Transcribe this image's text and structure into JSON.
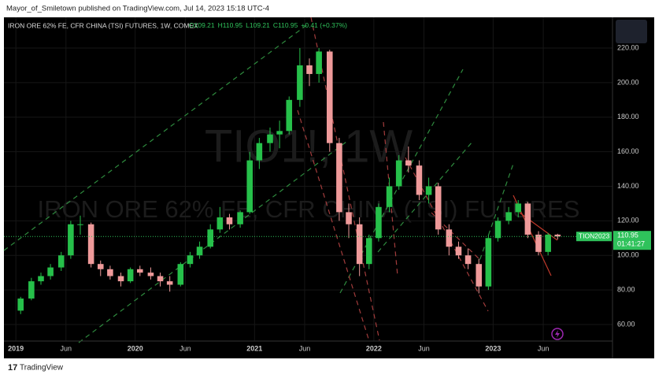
{
  "header": {
    "publisher": "Mayor_of_Smiletown published on TradingView.com, Jul 14, 2023 15:18 UTC-4"
  },
  "footer": {
    "brand": "TradingView"
  },
  "chart_data": {
    "type": "candlestick",
    "title": "IRON ORE 62% FE, CFR CHINA (TSI) FUTURES, 1W, COMEX",
    "legend_values": [
      "O109.21",
      "H110.95",
      "L109.21",
      "C110.95",
      "+0.41 (+0.37%)"
    ],
    "watermark": [
      "TIO1!, 1W",
      "IRON ORE 62% FE, CFR CHINA (TSI) FUTURES"
    ],
    "last_price": {
      "value": 110.95,
      "symbol": "TION2023",
      "label": "110.95",
      "countdown": "01:41:27"
    },
    "up_color": "#26c04a",
    "down_color": "#ef9a9a",
    "grid": true,
    "x": [
      2019.04,
      2019.13,
      2019.21,
      2019.29,
      2019.38,
      2019.46,
      2019.54,
      2019.63,
      2019.71,
      2019.79,
      2019.88,
      2019.96,
      2020.04,
      2020.13,
      2020.21,
      2020.29,
      2020.38,
      2020.46,
      2020.54,
      2020.63,
      2020.71,
      2020.79,
      2020.88,
      2020.96,
      2021.04,
      2021.13,
      2021.21,
      2021.29,
      2021.38,
      2021.46,
      2021.54,
      2021.63,
      2021.71,
      2021.79,
      2021.88,
      2021.96,
      2022.04,
      2022.13,
      2022.21,
      2022.29,
      2022.38,
      2022.46,
      2022.54,
      2022.63,
      2022.71,
      2022.79,
      2022.88,
      2022.96,
      2023.04,
      2023.13,
      2023.21,
      2023.29,
      2023.38,
      2023.46,
      2023.54
    ],
    "open": [
      68,
      75,
      85,
      88,
      93,
      100,
      118,
      118,
      95,
      92,
      88,
      85,
      92,
      90,
      88,
      85,
      83,
      95,
      100,
      105,
      115,
      122,
      118,
      125,
      155,
      165,
      170,
      172,
      190,
      210,
      205,
      218,
      165,
      125,
      118,
      95,
      110,
      128,
      140,
      155,
      152,
      135,
      140,
      115,
      105,
      100,
      95,
      82,
      110,
      120,
      125,
      130,
      112,
      102,
      112
    ],
    "high": [
      76,
      87,
      90,
      95,
      102,
      120,
      123,
      119,
      97,
      94,
      90,
      93,
      94,
      93,
      90,
      88,
      96,
      102,
      108,
      118,
      128,
      124,
      126,
      160,
      168,
      174,
      178,
      192,
      220,
      214,
      220,
      219,
      168,
      130,
      122,
      112,
      130,
      145,
      158,
      163,
      155,
      145,
      142,
      118,
      108,
      104,
      98,
      112,
      122,
      128,
      132,
      131,
      114,
      113,
      112.5
    ],
    "low": [
      66,
      74,
      83,
      86,
      91,
      98,
      112,
      93,
      88,
      86,
      82,
      84,
      88,
      86,
      82,
      79,
      82,
      93,
      98,
      104,
      113,
      115,
      116,
      124,
      150,
      160,
      162,
      170,
      186,
      198,
      200,
      160,
      120,
      110,
      88,
      92,
      108,
      125,
      138,
      148,
      132,
      130,
      112,
      100,
      98,
      92,
      78,
      80,
      108,
      118,
      122,
      110,
      100,
      100,
      109.21
    ],
    "close": [
      75,
      85,
      88,
      93,
      100,
      118,
      118,
      95,
      92,
      88,
      85,
      92,
      90,
      88,
      85,
      83,
      95,
      100,
      105,
      115,
      122,
      118,
      125,
      155,
      165,
      170,
      172,
      190,
      210,
      205,
      218,
      165,
      125,
      118,
      95,
      110,
      128,
      140,
      155,
      152,
      135,
      140,
      115,
      105,
      100,
      95,
      82,
      110,
      120,
      125,
      130,
      112,
      102,
      112,
      110.95
    ],
    "xlim": [
      2018.9,
      2024.0
    ],
    "xticks": [
      {
        "value": 2019,
        "label": "2019"
      },
      {
        "value": 2019.42,
        "label": "Jun"
      },
      {
        "value": 2020,
        "label": "2020"
      },
      {
        "value": 2020.42,
        "label": "Jun"
      },
      {
        "value": 2021,
        "label": "2021"
      },
      {
        "value": 2021.42,
        "label": "Jun"
      },
      {
        "value": 2022,
        "label": "2022"
      },
      {
        "value": 2022.42,
        "label": "Jun"
      },
      {
        "value": 2023,
        "label": "2023"
      },
      {
        "value": 2023.42,
        "label": "Jun"
      }
    ],
    "ylim": [
      50.4,
      237.8
    ],
    "yticks": [
      {
        "value": 60,
        "label": "60.00"
      },
      {
        "value": 80,
        "label": "80.00"
      },
      {
        "value": 100,
        "label": "100.00"
      },
      {
        "value": 120,
        "label": "120.00"
      },
      {
        "value": 140,
        "label": "140.00"
      },
      {
        "value": 160,
        "label": "160.00"
      },
      {
        "value": 180,
        "label": "180.00"
      },
      {
        "value": 200,
        "label": "200.00"
      },
      {
        "value": 220,
        "label": "220.00"
      }
    ]
  }
}
